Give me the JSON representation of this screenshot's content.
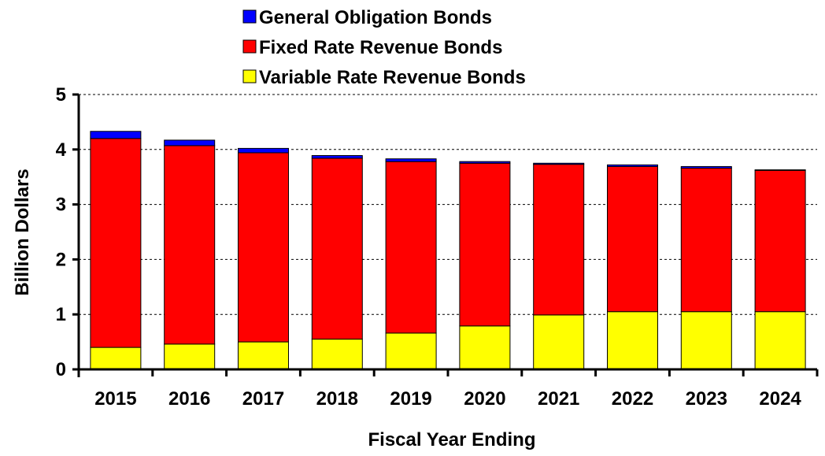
{
  "chart_data": {
    "type": "bar",
    "stacked": true,
    "title": "",
    "xlabel": "Fiscal Year Ending",
    "ylabel": "Billion Dollars",
    "ylim": [
      0,
      5
    ],
    "yticks": [
      "0",
      "1",
      "2",
      "3",
      "4",
      "5"
    ],
    "grid": true,
    "legend_placement": "top-center",
    "categories": [
      "2015",
      "2016",
      "2017",
      "2018",
      "2019",
      "2020",
      "2021",
      "2022",
      "2023",
      "2024"
    ],
    "series": [
      {
        "name": "Variable Rate Revenue Bonds",
        "color": "#ffff00",
        "values": [
          0.4,
          0.46,
          0.5,
          0.55,
          0.66,
          0.79,
          0.99,
          1.05,
          1.05,
          1.05
        ]
      },
      {
        "name": "Fixed Rate Revenue Bonds",
        "color": "#ff0000",
        "values": [
          3.8,
          3.61,
          3.44,
          3.29,
          3.12,
          2.96,
          2.74,
          2.64,
          2.61,
          2.57
        ]
      },
      {
        "name": "General Obligation Bonds",
        "color": "#0000ff",
        "values": [
          0.13,
          0.1,
          0.08,
          0.05,
          0.05,
          0.03,
          0.02,
          0.03,
          0.03,
          0.01
        ]
      }
    ],
    "legend_order": [
      "General Obligation Bonds",
      "Fixed Rate Revenue Bonds",
      "Variable Rate Revenue Bonds"
    ]
  }
}
